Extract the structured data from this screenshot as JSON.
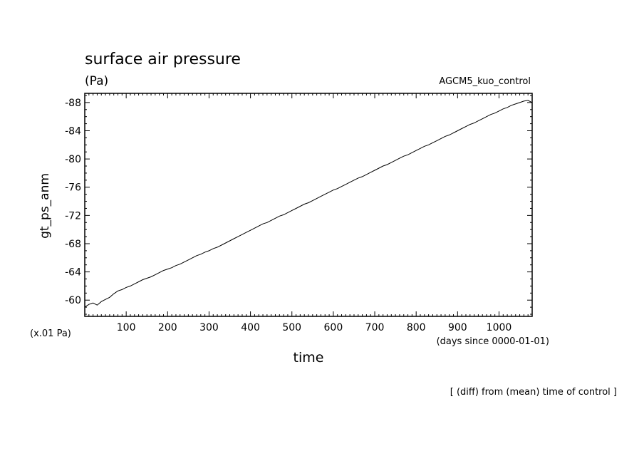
{
  "chart_data": {
    "type": "line",
    "title": "surface air pressure",
    "unit_label": "(Pa)",
    "dataset_label": "AGCM5_kuo_control",
    "ylabel": "gt_ps_anm",
    "xlabel": "time",
    "x_units": "(days since 0000-01-01)",
    "y_scale_note": "(x.01 Pa)",
    "footer_note": "[ (diff) from (mean) time of control ]",
    "xlim": [
      0,
      1080
    ],
    "ylim": [
      -57.7,
      -89.3
    ],
    "x_tick_labels": [
      "100",
      "200",
      "300",
      "400",
      "500",
      "600",
      "700",
      "800",
      "900",
      "1000"
    ],
    "x_tick_values": [
      100,
      200,
      300,
      400,
      500,
      600,
      700,
      800,
      900,
      1000
    ],
    "y_tick_labels": [
      "-60",
      "-64",
      "-68",
      "-72",
      "-76",
      "-80",
      "-84",
      "-88"
    ],
    "y_tick_values": [
      -60,
      -64,
      -68,
      -72,
      -76,
      -80,
      -84,
      -88
    ],
    "line_color": "#000000",
    "series": [
      {
        "values": [
          [
            0,
            -59.0
          ],
          [
            10,
            -59.4
          ],
          [
            20,
            -59.6
          ],
          [
            30,
            -59.3
          ],
          [
            40,
            -59.8
          ],
          [
            50,
            -60.1
          ],
          [
            60,
            -60.4
          ],
          [
            70,
            -60.9
          ],
          [
            80,
            -61.3
          ],
          [
            90,
            -61.5
          ],
          [
            100,
            -61.8
          ],
          [
            110,
            -62.0
          ],
          [
            120,
            -62.3
          ],
          [
            130,
            -62.6
          ],
          [
            140,
            -62.9
          ],
          [
            150,
            -63.1
          ],
          [
            160,
            -63.3
          ],
          [
            170,
            -63.6
          ],
          [
            180,
            -63.9
          ],
          [
            190,
            -64.2
          ],
          [
            200,
            -64.4
          ],
          [
            210,
            -64.6
          ],
          [
            220,
            -64.9
          ],
          [
            230,
            -65.1
          ],
          [
            240,
            -65.4
          ],
          [
            250,
            -65.7
          ],
          [
            260,
            -66.0
          ],
          [
            270,
            -66.3
          ],
          [
            280,
            -66.5
          ],
          [
            290,
            -66.8
          ],
          [
            300,
            -67.0
          ],
          [
            310,
            -67.3
          ],
          [
            320,
            -67.5
          ],
          [
            330,
            -67.8
          ],
          [
            340,
            -68.1
          ],
          [
            350,
            -68.4
          ],
          [
            360,
            -68.7
          ],
          [
            370,
            -69.0
          ],
          [
            380,
            -69.3
          ],
          [
            390,
            -69.6
          ],
          [
            400,
            -69.9
          ],
          [
            410,
            -70.2
          ],
          [
            420,
            -70.5
          ],
          [
            430,
            -70.8
          ],
          [
            440,
            -71.0
          ],
          [
            450,
            -71.3
          ],
          [
            460,
            -71.6
          ],
          [
            470,
            -71.9
          ],
          [
            480,
            -72.1
          ],
          [
            490,
            -72.4
          ],
          [
            500,
            -72.7
          ],
          [
            510,
            -73.0
          ],
          [
            520,
            -73.3
          ],
          [
            530,
            -73.6
          ],
          [
            540,
            -73.8
          ],
          [
            550,
            -74.1
          ],
          [
            560,
            -74.4
          ],
          [
            570,
            -74.7
          ],
          [
            580,
            -75.0
          ],
          [
            590,
            -75.3
          ],
          [
            600,
            -75.6
          ],
          [
            610,
            -75.8
          ],
          [
            620,
            -76.1
          ],
          [
            630,
            -76.4
          ],
          [
            640,
            -76.7
          ],
          [
            650,
            -77.0
          ],
          [
            660,
            -77.3
          ],
          [
            670,
            -77.5
          ],
          [
            680,
            -77.8
          ],
          [
            690,
            -78.1
          ],
          [
            700,
            -78.4
          ],
          [
            710,
            -78.7
          ],
          [
            720,
            -79.0
          ],
          [
            730,
            -79.2
          ],
          [
            740,
            -79.5
          ],
          [
            750,
            -79.8
          ],
          [
            760,
            -80.1
          ],
          [
            770,
            -80.4
          ],
          [
            780,
            -80.6
          ],
          [
            790,
            -80.9
          ],
          [
            800,
            -81.2
          ],
          [
            810,
            -81.5
          ],
          [
            820,
            -81.8
          ],
          [
            830,
            -82.0
          ],
          [
            840,
            -82.3
          ],
          [
            850,
            -82.6
          ],
          [
            860,
            -82.9
          ],
          [
            870,
            -83.2
          ],
          [
            880,
            -83.4
          ],
          [
            890,
            -83.7
          ],
          [
            900,
            -84.0
          ],
          [
            910,
            -84.3
          ],
          [
            920,
            -84.6
          ],
          [
            930,
            -84.9
          ],
          [
            940,
            -85.1
          ],
          [
            950,
            -85.4
          ],
          [
            960,
            -85.7
          ],
          [
            970,
            -86.0
          ],
          [
            980,
            -86.3
          ],
          [
            990,
            -86.5
          ],
          [
            1000,
            -86.8
          ],
          [
            1010,
            -87.1
          ],
          [
            1020,
            -87.3
          ],
          [
            1030,
            -87.6
          ],
          [
            1040,
            -87.8
          ],
          [
            1050,
            -88.0
          ],
          [
            1060,
            -88.2
          ],
          [
            1070,
            -88.3
          ],
          [
            1080,
            -88.0
          ]
        ]
      }
    ]
  }
}
